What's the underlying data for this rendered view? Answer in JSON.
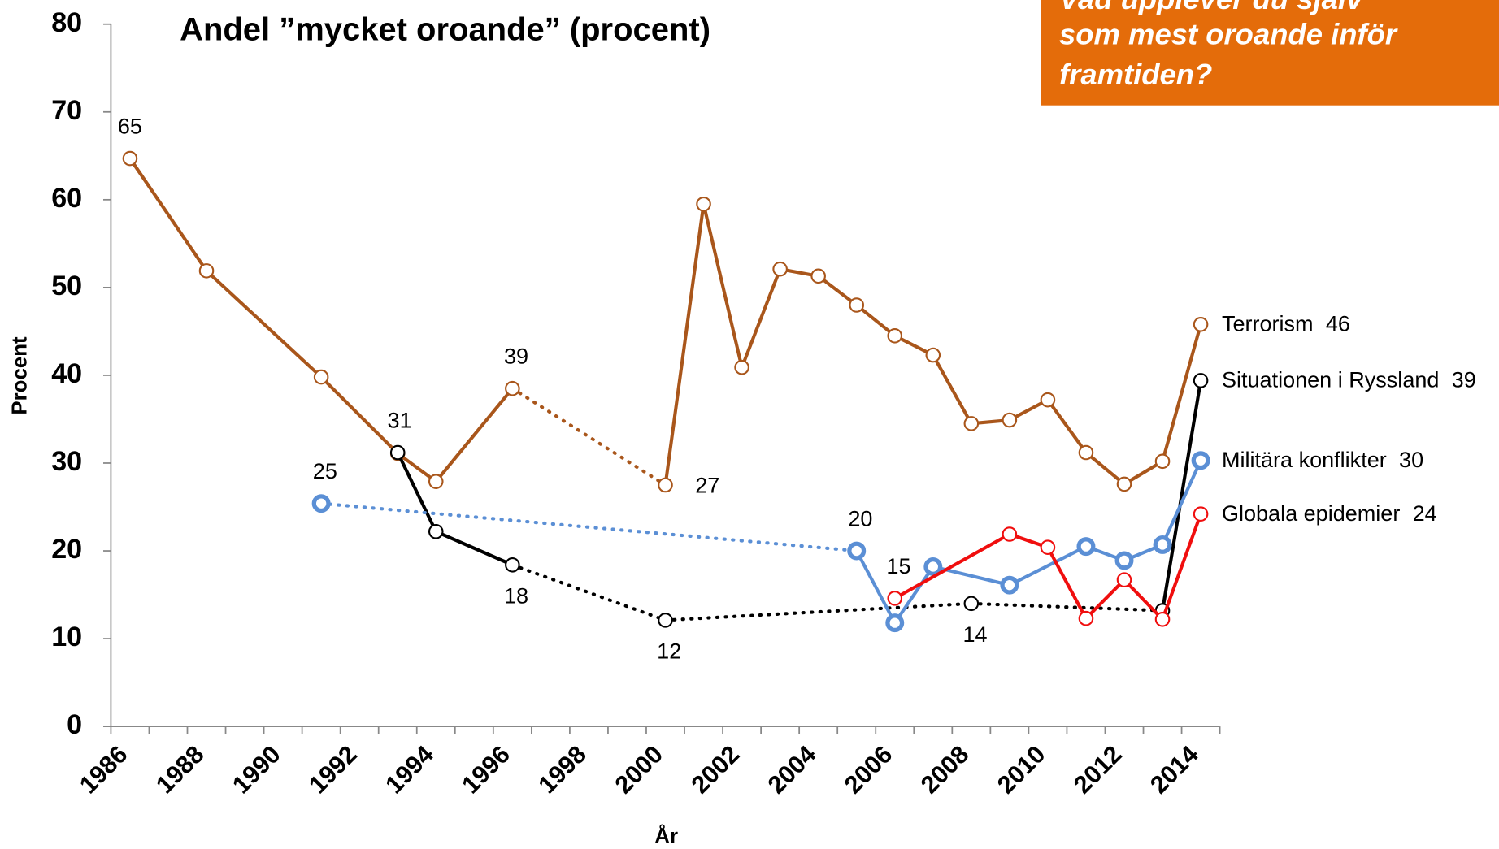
{
  "chart_data": {
    "type": "line",
    "title": "Andel ”mycket oroande” (procent)",
    "callout": [
      "Vad upplever du själv",
      "som mest oroande inför",
      "framtiden?"
    ],
    "callout_color": "#e46c0a",
    "x_label": "År",
    "y_label": "Procent",
    "categories": [
      "1986",
      null,
      "1988",
      null,
      "1990",
      null,
      "1992",
      null,
      "1994",
      null,
      "1996",
      null,
      "1998",
      null,
      "2000",
      null,
      "2002",
      null,
      "2004",
      null,
      "2006",
      null,
      "2008",
      null,
      "2010",
      null,
      "2012",
      null,
      "2014"
    ],
    "ylim": [
      0,
      80
    ],
    "yticks": [
      0,
      10,
      20,
      30,
      40,
      50,
      60,
      70,
      80
    ],
    "series": [
      {
        "name": "Terrorism",
        "color": "#a9561b",
        "dotted_segments": [
          [
            10,
            14
          ]
        ],
        "values": [
          64.7,
          null,
          51.9,
          null,
          null,
          39.8,
          null,
          31.1,
          27.9,
          null,
          38.5,
          null,
          null,
          null,
          27.5,
          59.5,
          40.9,
          52.1,
          51.3,
          48,
          44.5,
          42.3,
          34.5,
          34.9,
          37.2,
          31.2,
          27.6,
          30.2,
          45.8
        ],
        "value_labels": [
          "65",
          null,
          null,
          null,
          null,
          null,
          null,
          null,
          null,
          null,
          "39",
          null,
          null,
          null,
          "27",
          null,
          null,
          null,
          null,
          null,
          null,
          null,
          null,
          null,
          null,
          null,
          null,
          null,
          "46"
        ]
      },
      {
        "name": "Situationen i Ryssland",
        "color": "#000000",
        "dotted_segments": [
          [
            10,
            14
          ],
          [
            14,
            22
          ],
          [
            22,
            27
          ]
        ],
        "values": [
          null,
          null,
          null,
          null,
          null,
          null,
          null,
          31.2,
          22.2,
          null,
          18.4,
          null,
          null,
          null,
          12.1,
          null,
          null,
          null,
          null,
          null,
          null,
          null,
          14,
          null,
          null,
          null,
          null,
          13.2,
          39.4
        ],
        "value_labels": [
          null,
          null,
          null,
          null,
          null,
          null,
          null,
          "31",
          null,
          null,
          "18",
          null,
          null,
          null,
          "12",
          null,
          null,
          null,
          null,
          null,
          null,
          null,
          "14",
          null,
          null,
          null,
          null,
          null,
          "39"
        ]
      },
      {
        "name": "Militära konflikter",
        "color": "#5b8fd5",
        "dotted_segments": [
          [
            5,
            19
          ]
        ],
        "values": [
          null,
          null,
          null,
          null,
          null,
          25.4,
          null,
          null,
          null,
          null,
          null,
          null,
          null,
          null,
          null,
          null,
          null,
          null,
          null,
          20,
          11.8,
          18.2,
          null,
          16.1,
          null,
          20.5,
          18.9,
          20.7,
          30.3
        ],
        "value_labels": [
          null,
          null,
          null,
          null,
          null,
          "25",
          null,
          null,
          null,
          null,
          null,
          null,
          null,
          null,
          null,
          null,
          null,
          null,
          null,
          "20",
          null,
          null,
          null,
          null,
          null,
          null,
          null,
          null,
          "30"
        ]
      },
      {
        "name": "Globala epidemier",
        "color": "#f00e0e",
        "dotted_segments": [],
        "values": [
          null,
          null,
          null,
          null,
          null,
          null,
          null,
          null,
          null,
          null,
          null,
          null,
          null,
          null,
          null,
          null,
          null,
          null,
          null,
          null,
          14.6,
          null,
          null,
          21.9,
          20.4,
          12.3,
          16.7,
          12.2,
          24.2
        ],
        "value_labels": [
          null,
          null,
          null,
          null,
          null,
          null,
          null,
          null,
          null,
          null,
          null,
          null,
          null,
          null,
          null,
          null,
          null,
          null,
          null,
          null,
          "15",
          null,
          null,
          null,
          null,
          null,
          null,
          null,
          "24"
        ]
      }
    ]
  }
}
